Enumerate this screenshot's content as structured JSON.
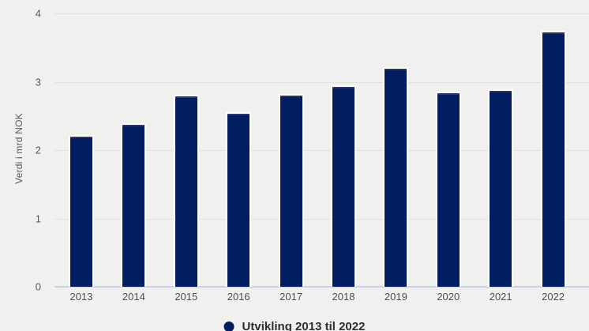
{
  "chart_data": {
    "type": "bar",
    "title": "",
    "xlabel": "",
    "ylabel": "Verdi i mrd NOK",
    "categories": [
      "2013",
      "2014",
      "2015",
      "2016",
      "2017",
      "2018",
      "2019",
      "2020",
      "2021",
      "2022"
    ],
    "values": [
      2.22,
      2.39,
      2.81,
      2.56,
      2.82,
      2.95,
      3.21,
      2.86,
      2.89,
      3.75
    ],
    "ylim": [
      0,
      4
    ],
    "yticks": [
      0,
      1,
      2,
      3,
      4
    ],
    "grid": true,
    "legend": {
      "label": "Utvikling 2013 til 2022",
      "position": "bottom-center"
    },
    "colors": {
      "bar_fill": "#001e60",
      "bar_outline": "#ffffff",
      "background": "#f0f1ee",
      "gridline": "#e0e1dd",
      "baseline": "#c9cfe8",
      "tick_text": "#55575b",
      "legend_text": "#2e2e31"
    }
  }
}
